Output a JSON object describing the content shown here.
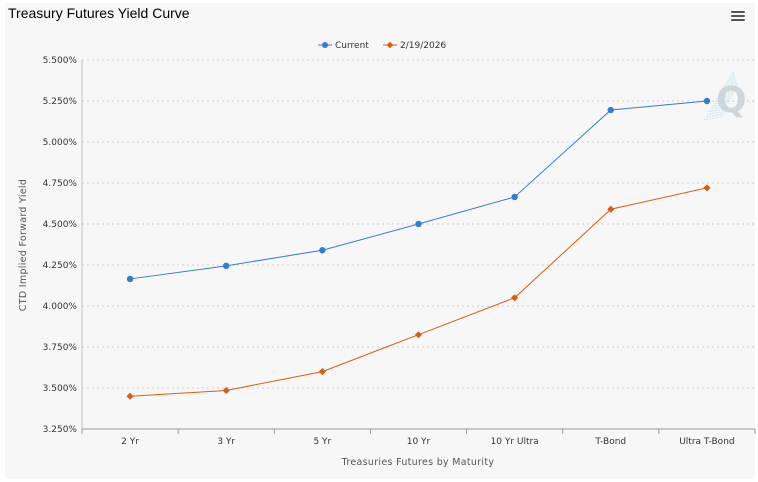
{
  "header": {
    "title": "Treasury Futures Yield Curve",
    "menu_icon": "hamburger-menu-icon"
  },
  "watermark": {
    "letter": "Q"
  },
  "colors": {
    "current": "#2f7ed8",
    "previous": "#d95f0e",
    "grid": "#d0d0d0"
  },
  "chart_data": {
    "type": "line",
    "title": "Treasury Futures Yield Curve",
    "xlabel": "Treasuries Futures by Maturity",
    "ylabel": "CTD Implied Forward Yield",
    "categories": [
      "2 Yr",
      "3 Yr",
      "5 Yr",
      "10 Yr",
      "10 Yr Ultra",
      "T-Bond",
      "Ultra T-Bond"
    ],
    "ylim": [
      3.25,
      5.5
    ],
    "yticks": [
      "3.250%",
      "3.500%",
      "3.750%",
      "4.000%",
      "4.250%",
      "4.500%",
      "4.750%",
      "5.000%",
      "5.250%",
      "5.500%"
    ],
    "grid": true,
    "legend_position": "top-center",
    "series": [
      {
        "name": "Current",
        "marker": "circle",
        "values": [
          4.165,
          4.245,
          4.34,
          4.5,
          4.665,
          5.195,
          5.25
        ]
      },
      {
        "name": "2/19/2026",
        "marker": "diamond",
        "values": [
          3.45,
          3.485,
          3.6,
          3.825,
          4.05,
          4.59,
          4.72
        ]
      }
    ]
  }
}
